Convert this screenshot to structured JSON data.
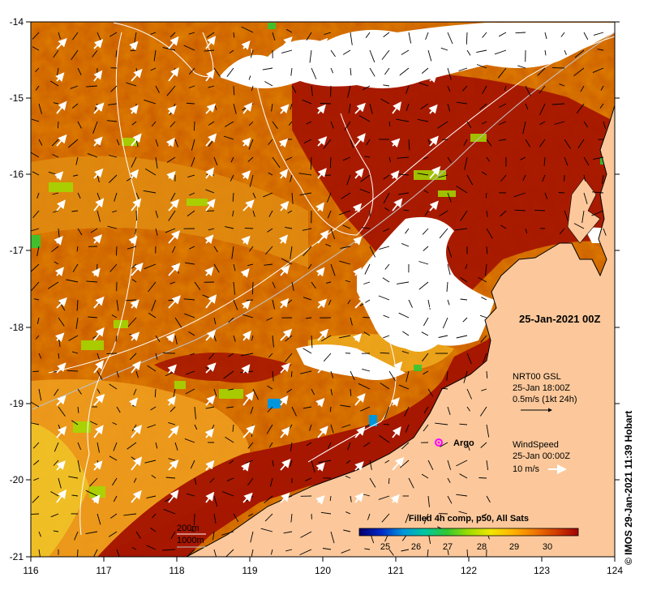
{
  "map": {
    "x_ticks": [
      "116",
      "117",
      "118",
      "119",
      "120",
      "121",
      "122",
      "123",
      "124"
    ],
    "y_ticks": [
      "-14",
      "-15",
      "-16",
      "-17",
      "-18",
      "-19",
      "-20",
      "-21"
    ],
    "date_label": "25-Jan-2021 00Z",
    "current_legend": {
      "line1": "NRT00 GSL",
      "line2": "25-Jan 18:00Z",
      "line3": "0.5m/s (1kt 24h)"
    },
    "wind_legend": {
      "line1": "WindSpeed",
      "line2": "25-Jan 00:00Z",
      "line3": "10 m/s"
    },
    "argo_label": "Argo",
    "depth_legend": [
      "200m",
      "1000m"
    ],
    "colorbar": {
      "title": "Filled 4h comp, p50, All Sats",
      "ticks": [
        "25",
        "26",
        "27",
        "28",
        "29",
        "30"
      ],
      "range": [
        24.2,
        31.0
      ],
      "colors": [
        "#00006e",
        "#0028c8",
        "#0096dc",
        "#00c8a0",
        "#32c832",
        "#a0dc00",
        "#f0e600",
        "#ffb400",
        "#f07800",
        "#d23c00",
        "#a00000"
      ]
    },
    "credit": "IMOS 29-Jan-2021 11:39 Hobart",
    "colors": {
      "land": "#fcc89b",
      "cloud": "#ffffff",
      "sst_hot": "#a31200",
      "sst_warm": "#c85a00",
      "sst_mid": "#e08c10",
      "sst_cool": "#f0c828"
    }
  }
}
